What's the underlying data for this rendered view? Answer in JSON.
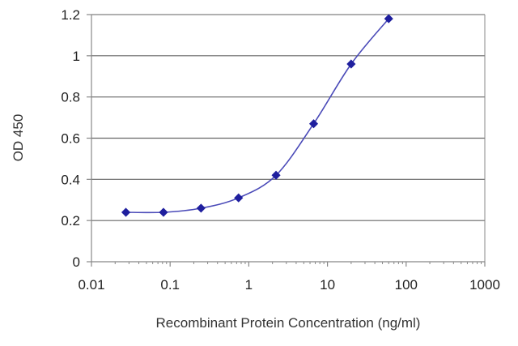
{
  "chart_data": {
    "type": "line",
    "title": "",
    "xlabel": "Recombinant Protein Concentration (ng/ml)",
    "ylabel": "OD 450",
    "x_scale": "log",
    "xlim": [
      0.01,
      1000
    ],
    "ylim": [
      0,
      1.2
    ],
    "x_ticks": [
      0.01,
      0.1,
      1,
      10,
      100,
      1000
    ],
    "x_tick_labels": [
      "0.01",
      "0.1",
      "1",
      "10",
      "100",
      "1000"
    ],
    "y_ticks": [
      0,
      0.2,
      0.4,
      0.6,
      0.8,
      1,
      1.2
    ],
    "y_tick_labels": [
      "0",
      "0.2",
      "0.4",
      "0.6",
      "0.8",
      "1",
      "1.2"
    ],
    "grid": "horizontal",
    "legend": "none",
    "series": [
      {
        "color": "#1f1f9e",
        "x": [
          0.0274,
          0.0823,
          0.247,
          0.741,
          2.22,
          6.67,
          20,
          60
        ],
        "y": [
          0.24,
          0.24,
          0.26,
          0.31,
          0.42,
          0.67,
          0.96,
          1.18
        ]
      }
    ],
    "colors": {
      "gridline": "#666666",
      "frame": "#888888",
      "line": "#4a4ab8",
      "marker": "#1f1f9e"
    }
  }
}
